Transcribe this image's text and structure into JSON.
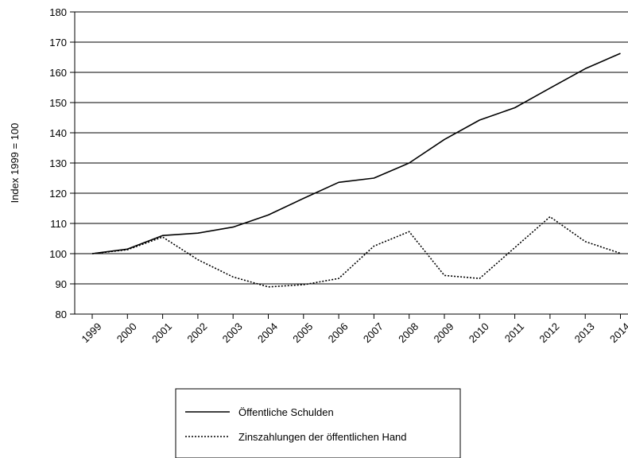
{
  "chart_data": {
    "type": "line",
    "ylabel": "Index 1999 = 100",
    "xlabel": "",
    "title": "",
    "ylim": [
      80,
      180
    ],
    "y_ticks": [
      80,
      90,
      100,
      110,
      120,
      130,
      140,
      150,
      160,
      170,
      180
    ],
    "grid": "horizontal",
    "legend_position": "bottom",
    "categories": [
      "1999",
      "2000",
      "2001",
      "2002",
      "2003",
      "2004",
      "2005",
      "2006",
      "2007",
      "2008",
      "2009",
      "2010",
      "2011",
      "2012",
      "2013",
      "2014"
    ],
    "series": [
      {
        "name": "Öffentliche Schulden",
        "style": "solid",
        "values": [
          100,
          101.5,
          106,
          106.8,
          108.8,
          112.8,
          118.3,
          123.6,
          125,
          130,
          137.8,
          144.2,
          148.3,
          154.8,
          161.2,
          166.3
        ]
      },
      {
        "name": "Zinszahlungen der öffentlichen Hand",
        "style": "dotted",
        "values": [
          100,
          101.3,
          105.5,
          98,
          92.3,
          89,
          89.7,
          91.8,
          102.5,
          107.3,
          92.8,
          91.8,
          102,
          112.2,
          104,
          100.1
        ]
      }
    ]
  }
}
